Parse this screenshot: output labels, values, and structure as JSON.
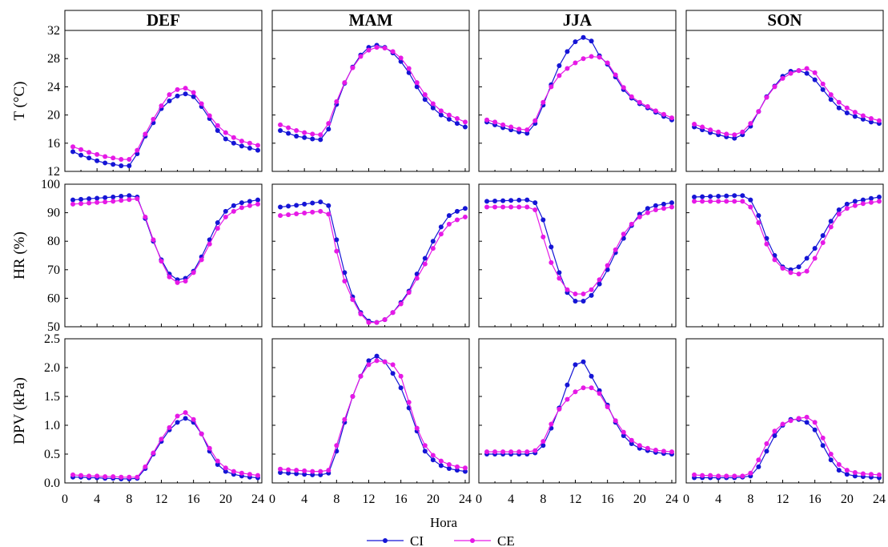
{
  "chart_data": {
    "type": "line",
    "x_axis_label": "Hora",
    "x_ticks": [
      0,
      4,
      8,
      12,
      16,
      20,
      24
    ],
    "xlim": [
      0,
      24.5
    ],
    "columns": [
      "DEF",
      "MAM",
      "JJA",
      "SON"
    ],
    "rows": [
      {
        "key": "T",
        "ylabel": "T (°C)",
        "ylim": [
          12,
          32
        ],
        "yticks": [
          12,
          16,
          20,
          24,
          28,
          32
        ]
      },
      {
        "key": "HR",
        "ylabel": "HR (%)",
        "ylim": [
          50,
          100
        ],
        "yticks": [
          50,
          60,
          70,
          80,
          90,
          100
        ]
      },
      {
        "key": "DPV",
        "ylabel": "DPV (kPa)",
        "ylim": [
          0,
          2.5
        ],
        "yticks": [
          "0.0",
          "0.5",
          "1.0",
          "1.5",
          "2.0",
          "2.5"
        ]
      }
    ],
    "x": [
      1,
      2,
      3,
      4,
      5,
      6,
      7,
      8,
      9,
      10,
      11,
      12,
      13,
      14,
      15,
      16,
      17,
      18,
      19,
      20,
      21,
      22,
      23,
      24
    ],
    "series_styles": [
      {
        "name": "CI",
        "color": "#1515d6"
      },
      {
        "name": "CE",
        "color": "#e619e6"
      }
    ],
    "panels": [
      {
        "row": "T",
        "season": "DEF",
        "series": [
          {
            "name": "CI",
            "values": [
              14.8,
              14.3,
              13.9,
              13.5,
              13.2,
              13.0,
              12.8,
              12.8,
              14.5,
              17.0,
              18.9,
              20.9,
              22.0,
              22.7,
              23.0,
              22.6,
              21.2,
              19.5,
              17.8,
              16.6,
              16.0,
              15.6,
              15.3,
              15.0
            ]
          },
          {
            "name": "CE",
            "values": [
              15.5,
              15.1,
              14.7,
              14.4,
              14.1,
              13.9,
              13.7,
              13.7,
              15.0,
              17.3,
              19.4,
              21.3,
              22.9,
              23.6,
              23.8,
              23.2,
              21.6,
              19.9,
              18.5,
              17.5,
              16.8,
              16.3,
              16.0,
              15.7
            ]
          }
        ]
      },
      {
        "row": "T",
        "season": "MAM",
        "series": [
          {
            "name": "CI",
            "values": [
              17.8,
              17.4,
              17.0,
              16.8,
              16.6,
              16.5,
              18.0,
              21.5,
              24.5,
              26.8,
              28.5,
              29.6,
              29.9,
              29.6,
              28.8,
              27.6,
              26.0,
              24.0,
              22.2,
              21.0,
              20.0,
              19.4,
              18.8,
              18.3
            ]
          },
          {
            "name": "CE",
            "values": [
              18.6,
              18.2,
              17.8,
              17.5,
              17.3,
              17.2,
              18.8,
              21.9,
              24.6,
              26.7,
              28.3,
              29.2,
              29.6,
              29.5,
              29.0,
              28.1,
              26.6,
              24.6,
              22.9,
              21.6,
              20.6,
              20.0,
              19.5,
              19.0
            ]
          }
        ]
      },
      {
        "row": "T",
        "season": "JJA",
        "series": [
          {
            "name": "CI",
            "values": [
              19.0,
              18.6,
              18.2,
              17.9,
              17.6,
              17.4,
              18.8,
              21.4,
              24.3,
              27.0,
              29.0,
              30.4,
              31.0,
              30.5,
              28.4,
              27.2,
              25.4,
              23.6,
              22.4,
              21.6,
              21.0,
              20.4,
              19.8,
              19.3
            ]
          },
          {
            "name": "CE",
            "values": [
              19.3,
              19.0,
              18.6,
              18.3,
              18.0,
              17.9,
              19.2,
              21.8,
              24.0,
              25.6,
              26.6,
              27.4,
              28.0,
              28.3,
              28.2,
              27.4,
              25.7,
              23.9,
              22.6,
              21.8,
              21.2,
              20.6,
              20.1,
              19.6
            ]
          }
        ]
      },
      {
        "row": "T",
        "season": "SON",
        "series": [
          {
            "name": "CI",
            "values": [
              18.3,
              17.9,
              17.5,
              17.2,
              16.9,
              16.7,
              17.2,
              18.4,
              20.5,
              22.6,
              24.1,
              25.5,
              26.2,
              26.3,
              25.9,
              25.0,
              23.6,
              22.2,
              21.0,
              20.3,
              19.8,
              19.4,
              19.0,
              18.8
            ]
          },
          {
            "name": "CE",
            "values": [
              18.7,
              18.3,
              17.9,
              17.6,
              17.3,
              17.2,
              17.6,
              18.8,
              20.5,
              22.5,
              24.0,
              25.2,
              25.9,
              26.3,
              26.6,
              26.0,
              24.4,
              22.9,
              21.8,
              21.0,
              20.4,
              19.9,
              19.5,
              19.2
            ]
          }
        ]
      },
      {
        "row": "HR",
        "season": "DEF",
        "series": [
          {
            "name": "CI",
            "values": [
              94.5,
              94.7,
              94.9,
              95.1,
              95.3,
              95.5,
              95.8,
              96.0,
              95.5,
              88.0,
              80.0,
              73.5,
              68.5,
              66.5,
              67.0,
              69.5,
              74.5,
              80.5,
              86.5,
              90.5,
              92.5,
              93.5,
              94.0,
              94.5
            ]
          },
          {
            "name": "CE",
            "values": [
              93.0,
              93.2,
              93.4,
              93.6,
              93.8,
              94.0,
              94.3,
              94.6,
              94.9,
              88.5,
              80.5,
              73.0,
              67.5,
              65.5,
              66.0,
              69.0,
              73.5,
              79.0,
              84.5,
              88.5,
              90.5,
              91.8,
              92.5,
              93.0
            ]
          }
        ]
      },
      {
        "row": "HR",
        "season": "MAM",
        "series": [
          {
            "name": "CI",
            "values": [
              92.0,
              92.3,
              92.6,
              93.0,
              93.4,
              93.8,
              92.5,
              80.5,
              69.0,
              60.5,
              55.0,
              52.0,
              51.5,
              52.5,
              55.0,
              58.5,
              62.5,
              68.5,
              74.0,
              80.0,
              85.0,
              89.0,
              90.5,
              91.5
            ]
          },
          {
            "name": "CE",
            "values": [
              89.0,
              89.3,
              89.6,
              89.9,
              90.2,
              90.5,
              89.5,
              76.5,
              66.0,
              59.5,
              54.5,
              51.5,
              51.5,
              52.5,
              55.0,
              58.0,
              62.0,
              67.0,
              72.0,
              77.5,
              82.5,
              86.0,
              87.5,
              88.5
            ]
          }
        ]
      },
      {
        "row": "HR",
        "season": "JJA",
        "series": [
          {
            "name": "CI",
            "values": [
              94.0,
              94.1,
              94.2,
              94.3,
              94.4,
              94.5,
              93.5,
              87.5,
              78.0,
              69.0,
              62.0,
              59.0,
              59.0,
              61.0,
              65.0,
              70.0,
              76.0,
              81.0,
              85.5,
              89.5,
              91.5,
              92.5,
              93.0,
              93.5
            ]
          },
          {
            "name": "CE",
            "values": [
              92.0,
              92.0,
              92.0,
              92.0,
              92.0,
              92.0,
              91.0,
              81.5,
              72.5,
              67.0,
              63.0,
              61.5,
              61.5,
              63.0,
              66.5,
              71.5,
              77.0,
              82.5,
              86.0,
              88.5,
              90.0,
              91.0,
              91.5,
              92.0
            ]
          }
        ]
      },
      {
        "row": "HR",
        "season": "SON",
        "series": [
          {
            "name": "CI",
            "values": [
              95.5,
              95.6,
              95.7,
              95.8,
              95.9,
              96.0,
              96.0,
              94.5,
              89.0,
              81.0,
              75.0,
              71.0,
              70.0,
              71.0,
              74.0,
              77.5,
              82.0,
              87.0,
              91.0,
              93.0,
              94.0,
              94.5,
              95.0,
              95.5
            ]
          },
          {
            "name": "CE",
            "values": [
              94.0,
              94.0,
              94.0,
              94.0,
              94.0,
              94.0,
              94.0,
              92.0,
              86.5,
              79.0,
              73.5,
              70.5,
              69.0,
              68.5,
              69.5,
              74.0,
              79.5,
              85.0,
              89.5,
              91.5,
              92.5,
              93.2,
              93.6,
              94.0
            ]
          }
        ]
      },
      {
        "row": "DPV",
        "season": "DEF",
        "series": [
          {
            "name": "CI",
            "values": [
              0.1,
              0.1,
              0.09,
              0.09,
              0.08,
              0.08,
              0.07,
              0.07,
              0.08,
              0.25,
              0.5,
              0.72,
              0.92,
              1.05,
              1.12,
              1.05,
              0.85,
              0.55,
              0.32,
              0.2,
              0.15,
              0.12,
              0.1,
              0.09
            ]
          },
          {
            "name": "CE",
            "values": [
              0.14,
              0.13,
              0.12,
              0.12,
              0.11,
              0.11,
              0.1,
              0.1,
              0.1,
              0.28,
              0.52,
              0.76,
              0.96,
              1.16,
              1.22,
              1.1,
              0.85,
              0.6,
              0.38,
              0.26,
              0.2,
              0.17,
              0.15,
              0.13
            ]
          }
        ]
      },
      {
        "row": "DPV",
        "season": "MAM",
        "series": [
          {
            "name": "CI",
            "values": [
              0.18,
              0.17,
              0.16,
              0.15,
              0.14,
              0.14,
              0.17,
              0.55,
              1.05,
              1.5,
              1.85,
              2.12,
              2.2,
              2.1,
              1.9,
              1.65,
              1.3,
              0.9,
              0.55,
              0.4,
              0.3,
              0.25,
              0.22,
              0.2
            ]
          },
          {
            "name": "CE",
            "values": [
              0.24,
              0.23,
              0.22,
              0.21,
              0.2,
              0.2,
              0.22,
              0.65,
              1.1,
              1.5,
              1.85,
              2.05,
              2.12,
              2.1,
              2.05,
              1.85,
              1.4,
              0.95,
              0.65,
              0.48,
              0.38,
              0.32,
              0.28,
              0.26
            ]
          }
        ]
      },
      {
        "row": "DPV",
        "season": "JJA",
        "series": [
          {
            "name": "CI",
            "values": [
              0.5,
              0.5,
              0.5,
              0.5,
              0.5,
              0.5,
              0.52,
              0.65,
              0.95,
              1.3,
              1.7,
              2.05,
              2.1,
              1.85,
              1.6,
              1.35,
              1.05,
              0.82,
              0.68,
              0.6,
              0.56,
              0.53,
              0.51,
              0.5
            ]
          },
          {
            "name": "CE",
            "values": [
              0.54,
              0.54,
              0.54,
              0.54,
              0.54,
              0.54,
              0.56,
              0.72,
              1.02,
              1.28,
              1.45,
              1.58,
              1.65,
              1.65,
              1.55,
              1.32,
              1.08,
              0.88,
              0.74,
              0.65,
              0.6,
              0.57,
              0.55,
              0.54
            ]
          }
        ]
      },
      {
        "row": "DPV",
        "season": "SON",
        "series": [
          {
            "name": "CI",
            "values": [
              0.09,
              0.09,
              0.09,
              0.09,
              0.09,
              0.09,
              0.1,
              0.12,
              0.28,
              0.55,
              0.82,
              1.0,
              1.1,
              1.1,
              1.05,
              0.92,
              0.65,
              0.4,
              0.22,
              0.15,
              0.12,
              0.11,
              0.1,
              0.09
            ]
          },
          {
            "name": "CE",
            "values": [
              0.14,
              0.13,
              0.13,
              0.12,
              0.12,
              0.12,
              0.12,
              0.17,
              0.4,
              0.68,
              0.9,
              1.02,
              1.08,
              1.12,
              1.14,
              1.05,
              0.78,
              0.5,
              0.32,
              0.22,
              0.18,
              0.16,
              0.15,
              0.14
            ]
          }
        ]
      }
    ]
  }
}
